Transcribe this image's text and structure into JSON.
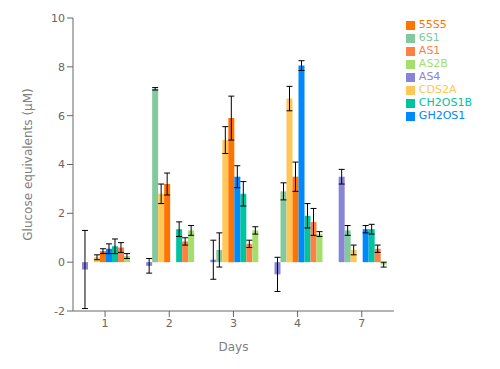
{
  "chart_data": {
    "type": "bar",
    "xlabel": "Days",
    "ylabel": "Glucose equivalents (µM)",
    "categories": [
      "1",
      "2",
      "3",
      "4",
      "7"
    ],
    "series": [
      {
        "name": "AS4",
        "color": "#8884d8",
        "values": [
          -0.3,
          -0.15,
          0.1,
          -0.5,
          3.5
        ],
        "errors": [
          1.6,
          0.3,
          0.8,
          0.7,
          0.3
        ]
      },
      {
        "name": "6S1",
        "color": "#82ca9d",
        "values": [
          0.0,
          7.1,
          0.5,
          2.9,
          1.3
        ],
        "errors": [
          0.05,
          0.05,
          0.7,
          0.35,
          0.2
        ]
      },
      {
        "name": "CDS2A",
        "color": "#ffc658",
        "values": [
          0.2,
          2.8,
          5.0,
          6.7,
          0.5
        ],
        "errors": [
          0.1,
          0.4,
          0.55,
          0.5,
          0.2
        ]
      },
      {
        "name": "55S5",
        "color": "#ff7300",
        "values": [
          0.45,
          3.2,
          5.9,
          3.5,
          0.0
        ],
        "errors": [
          0.1,
          0.45,
          0.9,
          0.6,
          0.1
        ]
      },
      {
        "name": "GH2OS1",
        "color": "#0088fe",
        "values": [
          0.55,
          0.0,
          3.5,
          8.05,
          1.35
        ],
        "errors": [
          0.2,
          0.15,
          0.45,
          0.2,
          0.15
        ]
      },
      {
        "name": "CH2OS1B",
        "color": "#00c49f",
        "values": [
          0.65,
          1.35,
          2.8,
          1.9,
          1.35
        ],
        "errors": [
          0.3,
          0.3,
          0.5,
          0.5,
          0.2
        ]
      },
      {
        "name": "AS1",
        "color": "#ff8042",
        "values": [
          0.6,
          0.85,
          0.75,
          1.65,
          0.55
        ],
        "errors": [
          0.2,
          0.15,
          0.15,
          0.55,
          0.15
        ]
      },
      {
        "name": "AS2B",
        "color": "#a4de6c",
        "values": [
          0.25,
          1.3,
          1.3,
          1.15,
          -0.1
        ],
        "errors": [
          0.1,
          0.2,
          0.15,
          0.1,
          0.1
        ]
      }
    ],
    "ylim": [
      -2,
      10
    ],
    "yticks": [
      -2,
      0,
      2,
      4,
      6,
      8,
      10
    ],
    "legend": "upper right",
    "grid": false
  }
}
